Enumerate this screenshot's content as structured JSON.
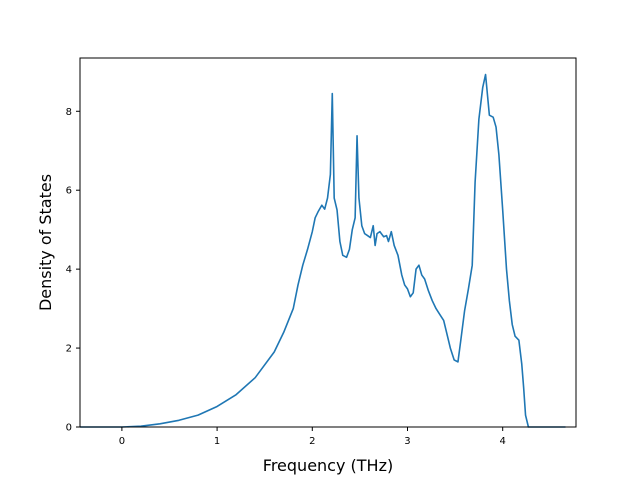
{
  "chart_data": {
    "type": "line",
    "title": "",
    "xlabel": "Frequency (THz)",
    "ylabel": "Density of States",
    "xlim": [
      -0.44,
      4.77
    ],
    "ylim": [
      0,
      9.35
    ],
    "xticks": [
      0,
      1,
      2,
      3,
      4
    ],
    "yticks": [
      0,
      2,
      4,
      6,
      8
    ],
    "grid": false,
    "legend": "none",
    "series": [
      {
        "color": "#1f77b4",
        "x": [
          -0.44,
          0.0,
          0.2,
          0.4,
          0.6,
          0.8,
          1.0,
          1.2,
          1.4,
          1.6,
          1.7,
          1.8,
          1.85,
          1.9,
          1.95,
          2.0,
          2.03,
          2.06,
          2.1,
          2.13,
          2.16,
          2.19,
          2.21,
          2.23,
          2.26,
          2.29,
          2.32,
          2.36,
          2.39,
          2.42,
          2.45,
          2.47,
          2.49,
          2.52,
          2.55,
          2.58,
          2.61,
          2.64,
          2.66,
          2.68,
          2.71,
          2.75,
          2.78,
          2.8,
          2.83,
          2.86,
          2.9,
          2.94,
          2.97,
          3.0,
          3.03,
          3.06,
          3.09,
          3.12,
          3.15,
          3.18,
          3.22,
          3.26,
          3.3,
          3.34,
          3.38,
          3.42,
          3.45,
          3.49,
          3.53,
          3.56,
          3.6,
          3.64,
          3.68,
          3.71,
          3.75,
          3.79,
          3.82,
          3.86,
          3.9,
          3.93,
          3.96,
          4.0,
          4.04,
          4.07,
          4.1,
          4.13,
          4.17,
          4.2,
          4.22,
          4.24,
          4.27,
          4.35,
          4.5,
          4.66
        ],
        "y": [
          0.0,
          0.0,
          0.02,
          0.08,
          0.17,
          0.3,
          0.52,
          0.82,
          1.25,
          1.9,
          2.4,
          3.0,
          3.6,
          4.1,
          4.5,
          4.95,
          5.3,
          5.45,
          5.62,
          5.52,
          5.8,
          6.4,
          8.45,
          5.8,
          5.5,
          4.7,
          4.35,
          4.3,
          4.5,
          5.0,
          5.3,
          7.38,
          5.8,
          5.1,
          4.9,
          4.85,
          4.8,
          5.1,
          4.6,
          4.9,
          4.95,
          4.82,
          4.85,
          4.7,
          4.95,
          4.6,
          4.35,
          3.85,
          3.6,
          3.5,
          3.3,
          3.4,
          4.0,
          4.1,
          3.85,
          3.75,
          3.45,
          3.2,
          3.0,
          2.85,
          2.7,
          2.3,
          2.0,
          1.7,
          1.65,
          2.2,
          2.95,
          3.5,
          4.1,
          6.2,
          7.8,
          8.6,
          8.93,
          7.9,
          7.85,
          7.6,
          6.9,
          5.5,
          4.0,
          3.2,
          2.6,
          2.3,
          2.2,
          1.6,
          1.0,
          0.3,
          0.0,
          0.0,
          0.0,
          0.0
        ]
      }
    ]
  }
}
